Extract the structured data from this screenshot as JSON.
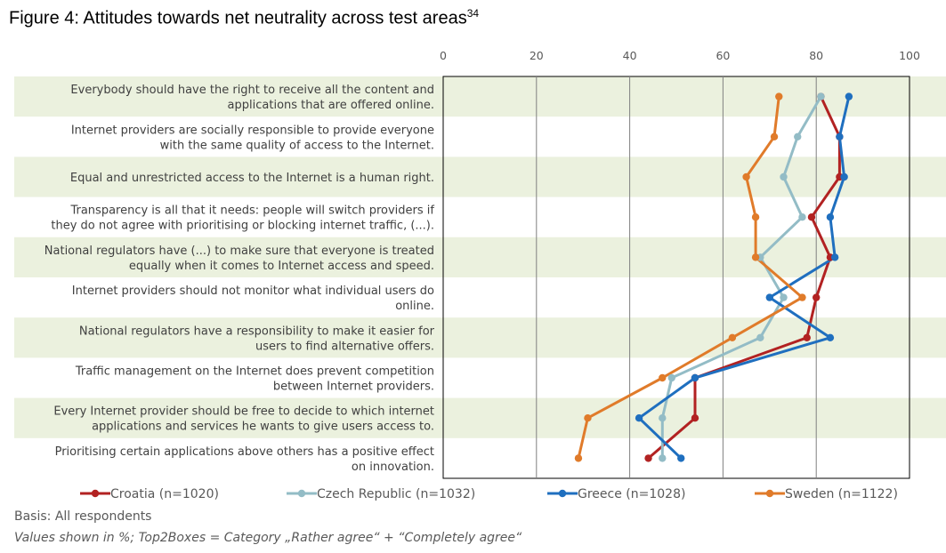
{
  "figure": {
    "title": "Figure 4: Attitudes towards net neutrality across test areas",
    "footnote_ref": "34"
  },
  "notes": {
    "basis": "Basis: All respondents",
    "values": "Values shown in %; Top2Boxes = Category „Rather agree“ + “Completely agree“"
  },
  "chart_data": {
    "type": "line",
    "orientation": "horizontal",
    "xlim": [
      0,
      100
    ],
    "xticks": [
      "0",
      "20",
      "40",
      "60",
      "80",
      "100"
    ],
    "grid": true,
    "legend_position": "bottom",
    "categories": [
      [
        "Everybody should have the right to receive all the content and",
        "applications that are offered online."
      ],
      [
        "Internet providers are socially responsible to provide everyone",
        "with the same quality of access to the Internet."
      ],
      [
        "Equal and unrestricted access to the Internet is a human right."
      ],
      [
        "Transparency is all that it needs: people will switch providers if",
        "they do not agree with prioritising or blocking internet traffic, (...)."
      ],
      [
        "National regulators have (...) to make sure that everyone is treated",
        "equally when it comes to Internet access and speed."
      ],
      [
        "Internet providers should not monitor what individual users do",
        "online."
      ],
      [
        "National regulators have a responsibility to make it easier for",
        "users to find alternative offers."
      ],
      [
        "Traffic management on the Internet does prevent competition",
        "between Internet providers."
      ],
      [
        "Every Internet provider should be free to decide to which internet",
        "applications and services he wants to give users access to."
      ],
      [
        "Prioritising certain applications above others has a positive effect",
        "on innovation."
      ]
    ],
    "series": [
      {
        "name": "Croatia (n=1020)",
        "color": "#b22222",
        "values": [
          81,
          85,
          85,
          79,
          83,
          80,
          78,
          54,
          54,
          44
        ]
      },
      {
        "name": "Czech Republic (n=1032)",
        "color": "#93bcc6",
        "values": [
          81,
          76,
          73,
          77,
          68,
          73,
          68,
          49,
          47,
          47
        ]
      },
      {
        "name": "Greece (n=1028)",
        "color": "#1f6fbf",
        "values": [
          87,
          85,
          86,
          83,
          84,
          70,
          83,
          54,
          42,
          51
        ]
      },
      {
        "name": "Sweden (n=1122)",
        "color": "#e07b2a",
        "values": [
          72,
          71,
          65,
          67,
          67,
          77,
          62,
          47,
          31,
          29
        ]
      }
    ]
  }
}
